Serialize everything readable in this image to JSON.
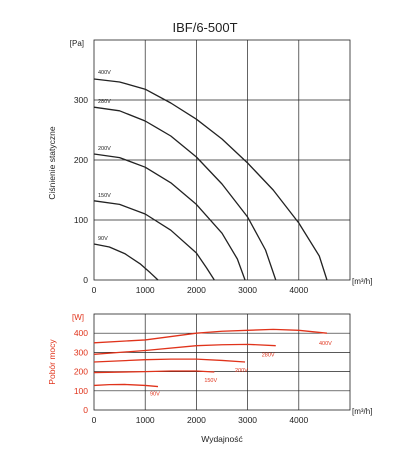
{
  "title": "IBF/6-500T",
  "chart_data": [
    {
      "type": "line",
      "ylabel": "Ciśnienie statyczne",
      "y_unit": "[Pa]",
      "x_unit": "[m³/h]",
      "xlim": [
        0,
        5000
      ],
      "ylim": [
        0,
        400
      ],
      "x_ticks": [
        0,
        1000,
        2000,
        3000,
        4000
      ],
      "y_ticks": [
        0,
        100,
        200,
        300
      ],
      "grid": true,
      "series": [
        {
          "name": "400V",
          "x": [
            0,
            500,
            1000,
            1500,
            2000,
            2500,
            3000,
            3500,
            4000,
            4400,
            4550
          ],
          "y": [
            335,
            330,
            318,
            295,
            268,
            235,
            195,
            150,
            95,
            40,
            0
          ]
        },
        {
          "name": "280V",
          "x": [
            0,
            500,
            1000,
            1500,
            2000,
            2500,
            3000,
            3350,
            3550
          ],
          "y": [
            288,
            282,
            265,
            240,
            205,
            160,
            105,
            50,
            0
          ]
        },
        {
          "name": "200V",
          "x": [
            0,
            500,
            1000,
            1500,
            2000,
            2500,
            2800,
            2950
          ],
          "y": [
            210,
            204,
            188,
            162,
            126,
            78,
            35,
            0
          ]
        },
        {
          "name": "150V",
          "x": [
            0,
            500,
            1000,
            1500,
            2000,
            2200,
            2350
          ],
          "y": [
            132,
            126,
            110,
            83,
            45,
            20,
            0
          ]
        },
        {
          "name": "90V",
          "x": [
            0,
            300,
            600,
            900,
            1100,
            1250
          ],
          "y": [
            60,
            55,
            44,
            27,
            12,
            0
          ]
        }
      ]
    },
    {
      "type": "line",
      "ylabel": "Pobór mocy",
      "y_unit": "[W]",
      "x_unit": "[m³/h]",
      "xlabel": "Wydajność",
      "xlim": [
        0,
        5000
      ],
      "ylim": [
        0,
        500
      ],
      "x_ticks": [
        0,
        1000,
        2000,
        3000,
        4000
      ],
      "y_ticks": [
        0,
        100,
        200,
        300,
        400
      ],
      "grid": true,
      "series": [
        {
          "name": "400V",
          "x": [
            0,
            1000,
            2000,
            2500,
            3000,
            3500,
            4000,
            4550
          ],
          "y": [
            350,
            365,
            400,
            410,
            415,
            420,
            415,
            400
          ]
        },
        {
          "name": "280V",
          "x": [
            0,
            1000,
            2000,
            2500,
            3000,
            3550
          ],
          "y": [
            290,
            310,
            335,
            340,
            342,
            335
          ]
        },
        {
          "name": "200V",
          "x": [
            0,
            1000,
            1500,
            2000,
            2500,
            2950
          ],
          "y": [
            250,
            262,
            265,
            265,
            258,
            250
          ]
        },
        {
          "name": "150V",
          "x": [
            0,
            1000,
            1500,
            2000,
            2350
          ],
          "y": [
            195,
            200,
            203,
            203,
            198
          ]
        },
        {
          "name": "90V",
          "x": [
            0,
            300,
            600,
            1000,
            1250
          ],
          "y": [
            128,
            132,
            133,
            128,
            122
          ]
        }
      ]
    }
  ]
}
